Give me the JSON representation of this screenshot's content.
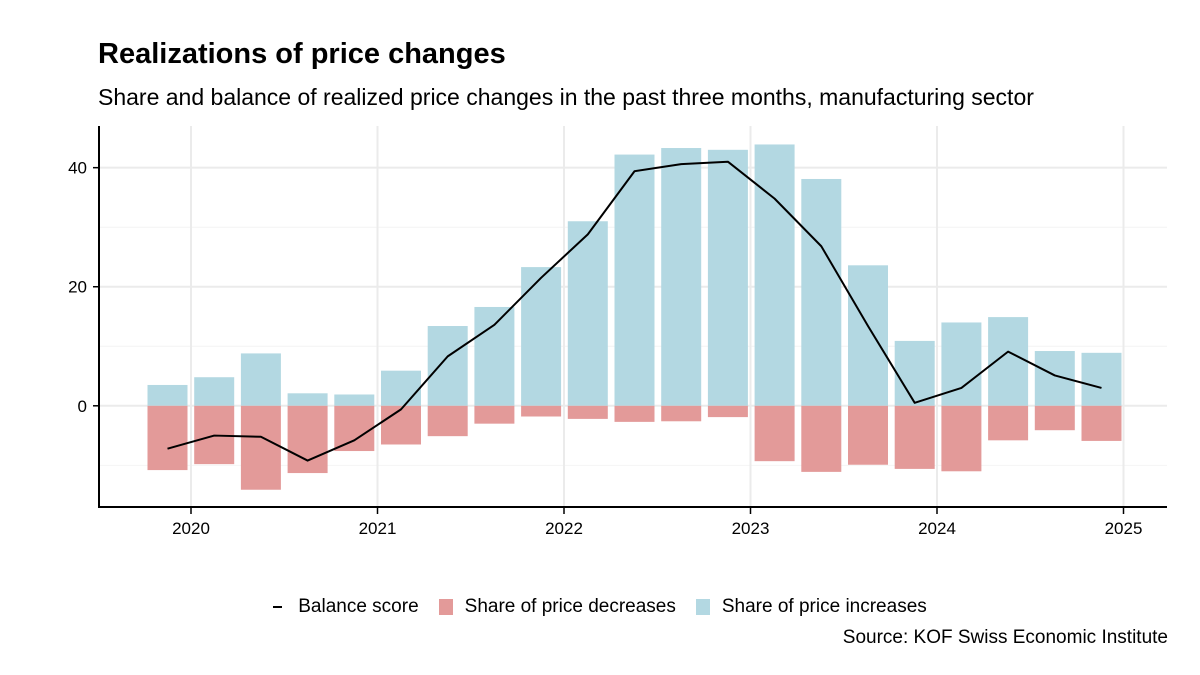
{
  "header": {
    "title": "Realizations of price changes",
    "subtitle": "Share and balance of realized price changes in the past three months, manufacturing sector"
  },
  "legend": {
    "balance_label": "Balance score",
    "decreases_label": "Share of price decreases",
    "increases_label": "Share of price increases"
  },
  "source": "Source: KOF Swiss Economic Institute",
  "colors": {
    "increases": "#b3d8e2",
    "decreases": "#e39a99",
    "balance": "#000000",
    "grid": "#ebebeb"
  },
  "chart_data": {
    "type": "bar",
    "title": "Realizations of price changes",
    "subtitle": "Share and balance of realized price changes in the past three months, manufacturing sector",
    "xlabel": "",
    "ylabel": "",
    "grid": true,
    "legend_position": "bottom",
    "x_ticks": [
      "2020",
      "2021",
      "2022",
      "2023",
      "2024",
      "2025"
    ],
    "y_ticks": [
      0,
      20,
      40
    ],
    "ylim": [
      -17,
      47
    ],
    "categories": [
      "2019Q4",
      "2020Q1",
      "2020Q2",
      "2020Q3",
      "2020Q4",
      "2021Q1",
      "2021Q2",
      "2021Q3",
      "2021Q4",
      "2022Q1",
      "2022Q2",
      "2022Q3",
      "2022Q4",
      "2023Q1",
      "2023Q2",
      "2023Q3",
      "2023Q4",
      "2024Q1",
      "2024Q2",
      "2024Q3",
      "2024Q4"
    ],
    "series": [
      {
        "name": "Share of price increases",
        "type": "bar",
        "values": [
          3.5,
          4.8,
          8.8,
          2.1,
          1.9,
          5.9,
          13.4,
          16.6,
          23.3,
          31.0,
          42.2,
          43.3,
          43.0,
          43.9,
          38.1,
          23.6,
          10.9,
          14.0,
          14.9,
          9.2,
          8.9
        ]
      },
      {
        "name": "Share of price decreases",
        "type": "bar",
        "values": [
          -10.8,
          -9.8,
          -14.1,
          -11.3,
          -7.6,
          -6.5,
          -5.1,
          -3.0,
          -1.8,
          -2.2,
          -2.7,
          -2.6,
          -1.9,
          -9.3,
          -11.1,
          -9.9,
          -10.6,
          -11.0,
          -5.8,
          -4.1,
          -5.9
        ]
      },
      {
        "name": "Balance score",
        "type": "line",
        "values": [
          -7.2,
          -5.0,
          -5.2,
          -9.2,
          -5.8,
          -0.6,
          8.3,
          13.6,
          21.5,
          28.8,
          39.4,
          40.6,
          41.0,
          34.8,
          26.8,
          13.4,
          0.5,
          3.0,
          9.1,
          5.1,
          3.0
        ]
      }
    ]
  }
}
